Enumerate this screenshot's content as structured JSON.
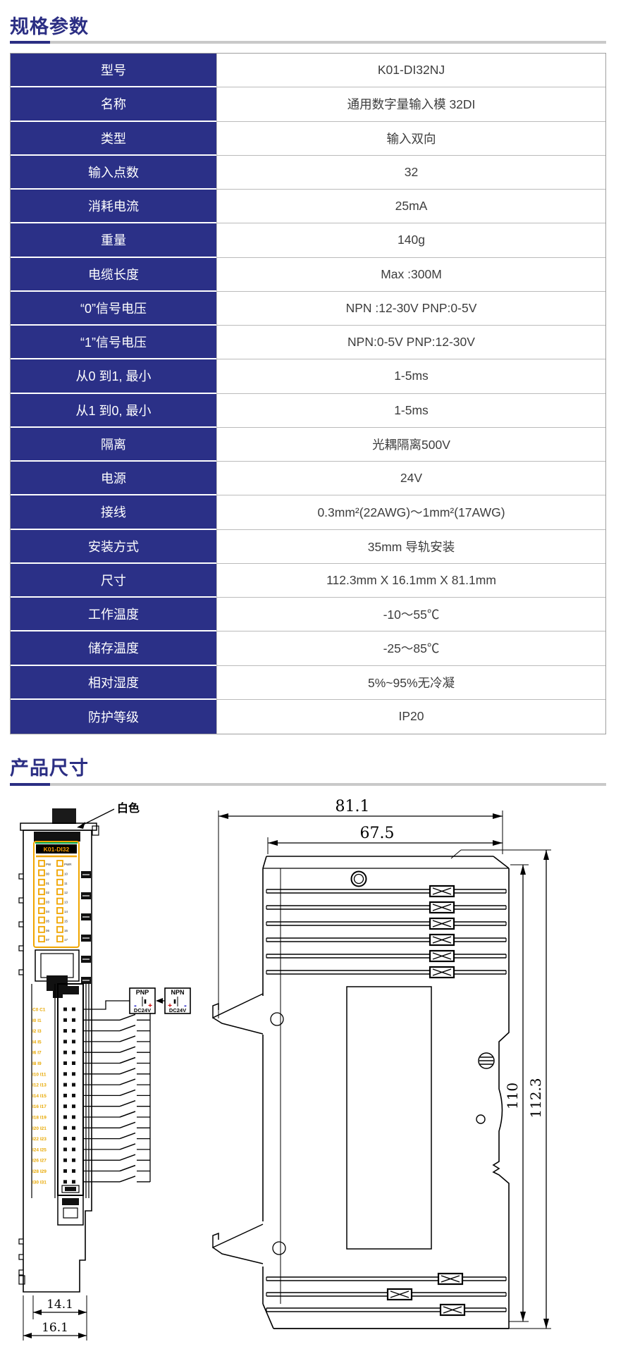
{
  "sections": {
    "spec_title": "规格参数",
    "dim_title": "产品尺寸"
  },
  "spec_table": {
    "rows": [
      {
        "label": "型号",
        "value": "K01-DI32NJ"
      },
      {
        "label": "名称",
        "value": "通用数字量输入模 32DI"
      },
      {
        "label": "类型",
        "value": "输入双向"
      },
      {
        "label": "输入点数",
        "value": "32"
      },
      {
        "label": "消耗电流",
        "value": "25mA"
      },
      {
        "label": "重量",
        "value": "140g"
      },
      {
        "label": "电缆长度",
        "value": "Max :300M"
      },
      {
        "label": "“0”信号电压",
        "value": "NPN :12-30V PNP:0-5V"
      },
      {
        "label": "“1”信号电压",
        "value": "NPN:0-5V PNP:12-30V"
      },
      {
        "label": "从0 到1, 最小",
        "value": "1-5ms"
      },
      {
        "label": "从1 到0, 最小",
        "value": "1-5ms"
      },
      {
        "label": "隔离",
        "value": "光耦隔离500V"
      },
      {
        "label": "电源",
        "value": "24V"
      },
      {
        "label": "接线",
        "value": "0.3mm²(22AWG)～1mm²(17AWG)"
      },
      {
        "label": "安装方式",
        "value": "35mm 导轨安装"
      },
      {
        "label": "尺寸",
        "value": "112.3mm X 16.1mm X 81.1mm"
      },
      {
        "label": "工作温度",
        "value": "-10～55℃"
      },
      {
        "label": "储存温度",
        "value": "-25～85℃"
      },
      {
        "label": "相对湿度",
        "value": "5%~95%无冷凝"
      },
      {
        "label": "防护等级",
        "value": "IP20"
      }
    ]
  },
  "drawing": {
    "front_view": {
      "color_callout": "白色",
      "module_label": "K01-DI32",
      "led_left": [
        "PW",
        "00",
        "01",
        "02",
        "03",
        "04",
        "05",
        "06",
        "07"
      ],
      "led_right": [
        "PWR",
        "10",
        "11",
        "12",
        "13",
        "14",
        "15",
        "16",
        "17"
      ],
      "pin_rows": [
        "C0 C1",
        "I0 I1",
        "I2 I3",
        "I4 I5",
        "I6 I7",
        "I8 I9",
        "I10 I11",
        "I12 I13",
        "I14 I15",
        "I16 I17",
        "I18 I19",
        "I20 I21",
        "I22 I23",
        "I24 I25",
        "I26 I27",
        "I28 I29",
        "I30 I31"
      ],
      "dim_inner": "14.1",
      "dim_outer": "16.1"
    },
    "wiring": {
      "pnp_label": "PNP",
      "npn_label": "NPN",
      "pnp_voltage": "DC24V",
      "npn_voltage": "DC24V",
      "plus": "+",
      "minus": "-"
    },
    "side_view": {
      "dim_total_width": "81.1",
      "dim_body_width": "67.5",
      "dim_body_height": "110",
      "dim_total_height": "112.3"
    }
  },
  "colors": {
    "navy": "#2b3087",
    "title_navy": "#2b2e83",
    "rule_gray": "#c9c9c9",
    "drawing_orange": "#f0a500",
    "label_orange": "#ffa000",
    "pin_label_orange": "#e8a800",
    "green_line": "#00a651",
    "plus_red": "#cc0000",
    "minus_blue": "#0000bb"
  }
}
